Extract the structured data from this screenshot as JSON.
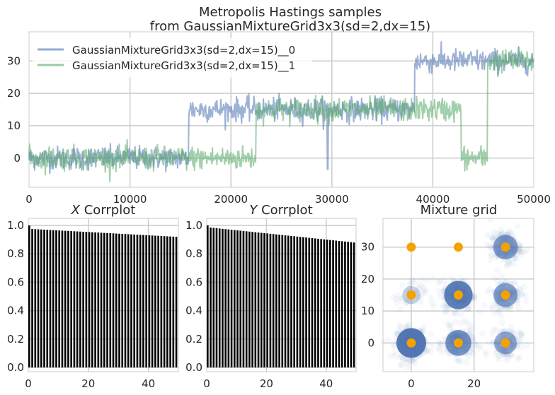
{
  "figure": {
    "title_line1": "Metropolis Hastings samples",
    "title_line2": "from GaussianMixtureGrid3x3(sd=2,dx=15)"
  },
  "chart_data": [
    {
      "type": "line",
      "title": "Metropolis Hastings samples\nfrom GaussianMixtureGrid3x3(sd=2,dx=15)",
      "xlim": [
        0,
        50000
      ],
      "ylim": [
        -9,
        39
      ],
      "xticks": [
        0,
        10000,
        20000,
        30000,
        40000,
        50000
      ],
      "yticks": [
        0,
        10,
        20,
        30
      ],
      "grid": true,
      "legend_position": "upper-left",
      "series": [
        {
          "name": "GaussianMixtureGrid3x3(sd=2,dx=15)__0",
          "color": "#4c72b0",
          "segments": [
            {
              "x_start": 0,
              "x_end": 15800,
              "level": 0,
              "noise": 2
            },
            {
              "x_start": 15800,
              "x_end": 38200,
              "level": 15,
              "noise": 2
            },
            {
              "x_start": 38200,
              "x_end": 50000,
              "level": 30,
              "noise": 2
            }
          ],
          "spikes": [
            {
              "x": 29600,
              "value": -3.5
            }
          ]
        },
        {
          "name": "GaussianMixtureGrid3x3(sd=2,dx=15)__1",
          "color": "#55a868",
          "segments": [
            {
              "x_start": 0,
              "x_end": 22500,
              "level": 0,
              "noise": 2
            },
            {
              "x_start": 22500,
              "x_end": 42800,
              "level": 15,
              "noise": 2
            },
            {
              "x_start": 42800,
              "x_end": 45400,
              "level": 0,
              "noise": 2
            },
            {
              "x_start": 45400,
              "x_end": 50000,
              "level": 30,
              "noise": 2
            }
          ],
          "spikes": []
        }
      ]
    },
    {
      "type": "bar",
      "title": "X Corrplot",
      "title_italic_part": "X",
      "title_rest": " Corrplot",
      "xlim": [
        0,
        50
      ],
      "ylim": [
        -0.03,
        1.05
      ],
      "xticks": [
        0,
        20,
        40
      ],
      "yticks": [
        0.0,
        0.2,
        0.4,
        0.6,
        0.8,
        1.0
      ],
      "bar_color": "#000000",
      "lags": [
        0,
        49
      ],
      "value_at_lag0": 1.0,
      "value_at_lag1": 0.975,
      "value_at_lag49": 0.92
    },
    {
      "type": "bar",
      "title": "Y Corrplot",
      "title_italic_part": "Y",
      "title_rest": " Corrplot",
      "xlim": [
        0,
        50
      ],
      "ylim": [
        -0.03,
        1.05
      ],
      "xticks": [
        0,
        20,
        40
      ],
      "yticks": [
        0.0,
        0.2,
        0.4,
        0.6,
        0.8,
        1.0
      ],
      "bar_color": "#000000",
      "lags": [
        0,
        49
      ],
      "value_at_lag0": 1.0,
      "value_at_lag1": 0.985,
      "value_at_lag49": 0.88
    },
    {
      "type": "scatter",
      "title": "Mixture grid",
      "xlim": [
        -9,
        39
      ],
      "ylim": [
        -9,
        39
      ],
      "xticks": [
        0,
        20
      ],
      "yticks": [
        0,
        10,
        20,
        30
      ],
      "sample_color": "#4c72b0",
      "center_color": "#f5a100",
      "centers": [
        {
          "x": 0,
          "y": 0
        },
        {
          "x": 15,
          "y": 0
        },
        {
          "x": 30,
          "y": 0
        },
        {
          "x": 0,
          "y": 15
        },
        {
          "x": 15,
          "y": 15
        },
        {
          "x": 30,
          "y": 15
        },
        {
          "x": 0,
          "y": 30
        },
        {
          "x": 15,
          "y": 30
        },
        {
          "x": 30,
          "y": 30
        }
      ],
      "sample_clusters": [
        {
          "x": 0,
          "y": 0,
          "weight": 1.0
        },
        {
          "x": 15,
          "y": 0,
          "weight": 0.7
        },
        {
          "x": 30,
          "y": 0,
          "weight": 0.45
        },
        {
          "x": 0,
          "y": 15,
          "weight": 0.08
        },
        {
          "x": 15,
          "y": 15,
          "weight": 0.9
        },
        {
          "x": 30,
          "y": 15,
          "weight": 0.55
        },
        {
          "x": 30,
          "y": 30,
          "weight": 0.6
        }
      ]
    }
  ]
}
